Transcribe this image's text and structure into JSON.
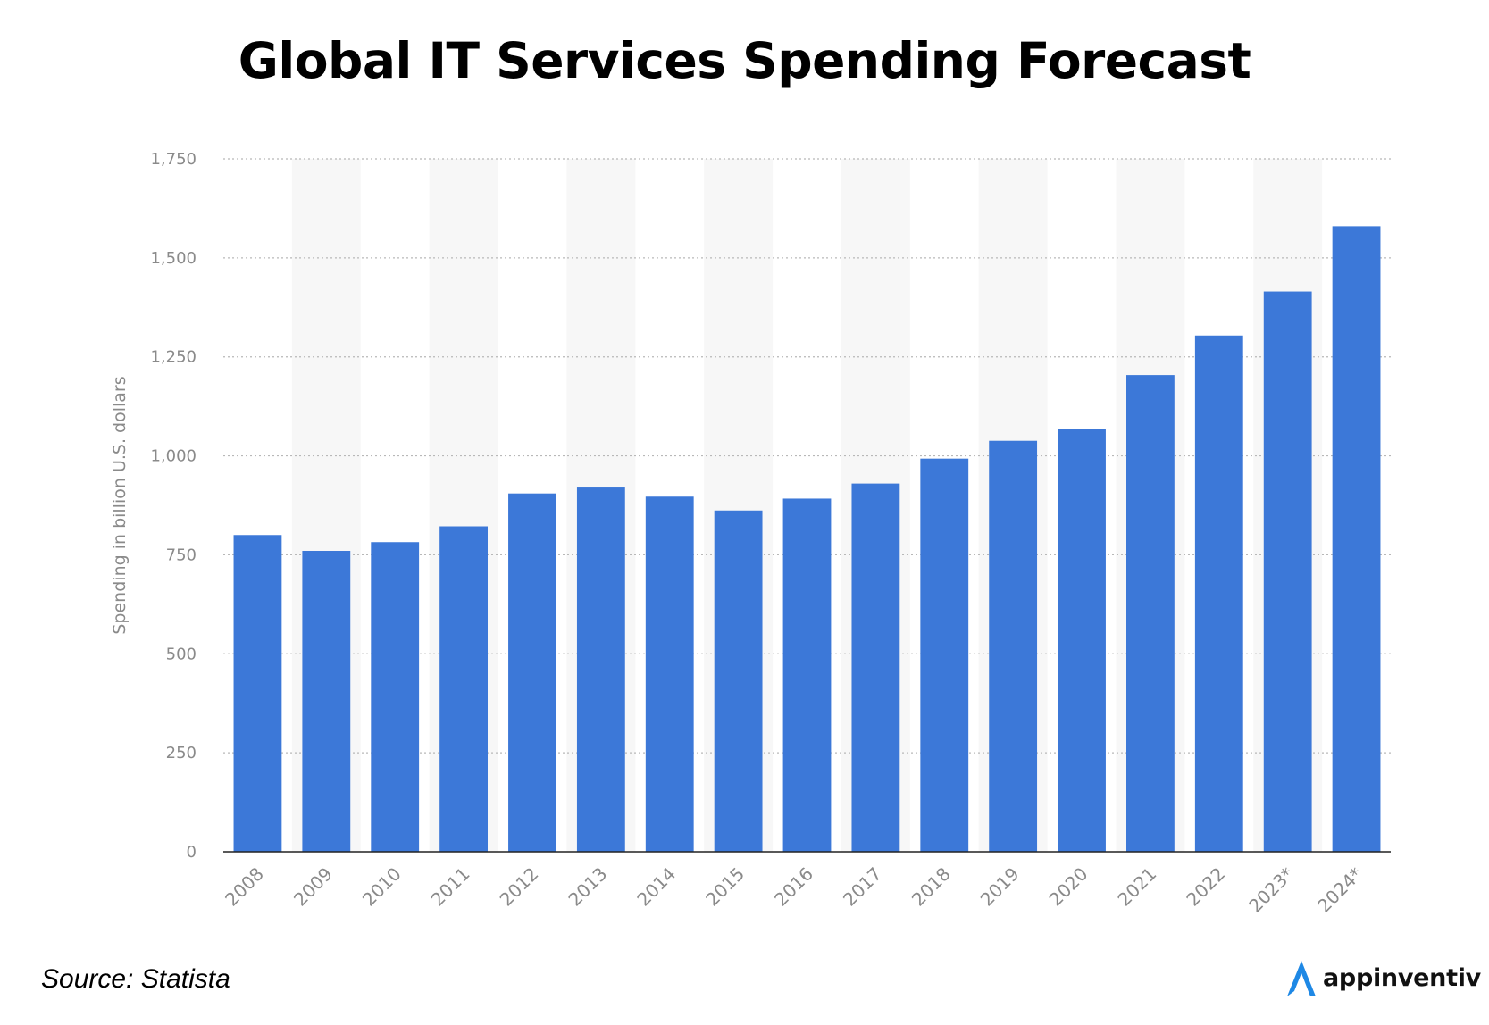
{
  "page": {
    "title": "Global IT Services Spending Forecast",
    "source": "Source: Statista"
  },
  "brand": {
    "name": "appinventiv",
    "logo_icon": "appinventiv-logo-icon",
    "logo_color": "#1e88e5"
  },
  "colors": {
    "bar": "#3c78d8",
    "alt_band": "#f7f7f7",
    "grid": "#b8b8b8",
    "tick_text": "#8a8a8a",
    "axis": "#222222"
  },
  "chart_data": {
    "type": "bar",
    "title": "",
    "xlabel": "",
    "ylabel": "Spending in billion U.S. dollars",
    "categories": [
      "2008",
      "2009",
      "2010",
      "2011",
      "2012",
      "2013",
      "2014",
      "2015",
      "2016",
      "2017",
      "2018",
      "2019",
      "2020",
      "2021",
      "2022",
      "2023*",
      "2024*"
    ],
    "values": [
      800,
      760,
      782,
      822,
      905,
      920,
      897,
      862,
      892,
      930,
      993,
      1038,
      1067,
      1204,
      1304,
      1415,
      1580
    ],
    "ylim": [
      0,
      1750
    ],
    "yticks": [
      0,
      250,
      500,
      750,
      1000,
      1250,
      1500,
      1750
    ],
    "ytick_labels": [
      "0",
      "250",
      "500",
      "750",
      "1,000",
      "1,250",
      "1,500",
      "1,750"
    ],
    "grid": true,
    "alternating_column_bands": true,
    "legend": "none"
  }
}
